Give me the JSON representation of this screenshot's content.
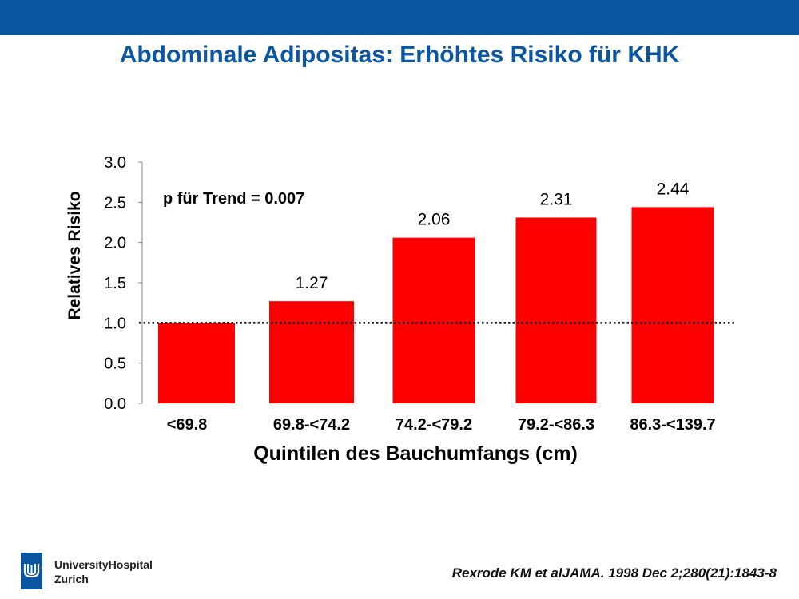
{
  "slide": {
    "title": "Abdominale Adipositas: Erhöhtes Risiko für KHK",
    "brand_color": "#0a56a1"
  },
  "chart_data": {
    "type": "bar",
    "categories": [
      "<69.8",
      "69.8-<74.2",
      "74.2-<79.2",
      "79.2-<86.3",
      "86.3-<139.7"
    ],
    "values": [
      1.0,
      1.27,
      2.06,
      2.31,
      2.44
    ],
    "data_labels": [
      "",
      "1.27",
      "2.06",
      "2.31",
      "2.44"
    ],
    "xlabel": "Quintilen des Bauchumfangs (cm)",
    "ylabel": "Relatives Risiko",
    "ylim": [
      0,
      3.0
    ],
    "yticks": [
      "0.0",
      "0.5",
      "1.0",
      "1.5",
      "2.0",
      "2.5",
      "3.0"
    ],
    "reference_line": 1.0,
    "annotation": "p für Trend = 0.007",
    "bar_color": "#ff0000",
    "grid": false
  },
  "footer": {
    "logo_text_line1": "UniversityHospital",
    "logo_text_line2": "Zurich",
    "logo_icon": "university-hospital-logo-icon",
    "citation": "Rexrode KM et alJAMA. 1998 Dec 2;280(21):1843-8"
  }
}
